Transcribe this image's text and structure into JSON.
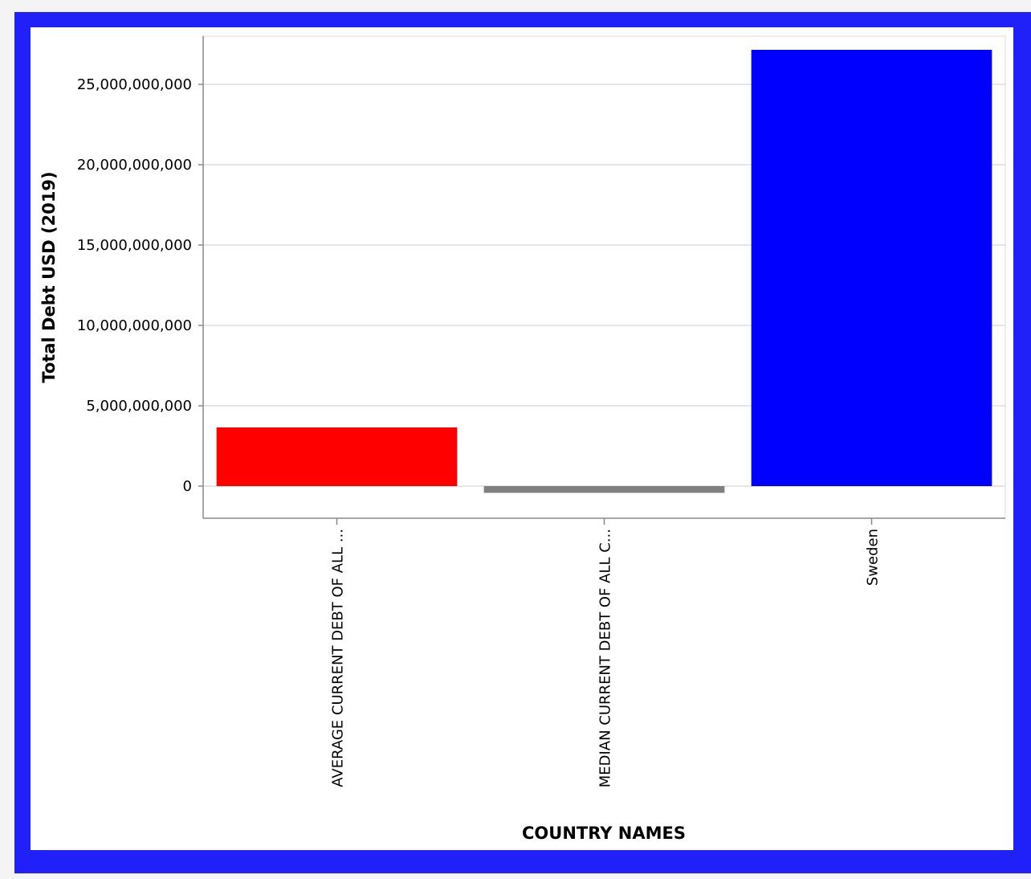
{
  "chart_data": {
    "type": "bar",
    "categories": [
      "AVERAGE CURRENT DEBT OF ALL ...",
      "MEDIAN CURRENT DEBT OF ALL C...",
      "Sweden"
    ],
    "values": [
      3650000000,
      -420000000,
      27150000000
    ],
    "colors": [
      "#ff0000",
      "#808080",
      "#0000ff"
    ],
    "xlabel": "COUNTRY NAMES",
    "ylabel": "Total Debt USD (2019)",
    "ylim": [
      -2000000000,
      28000000000
    ],
    "yticks": [
      0,
      5000000000,
      10000000000,
      15000000000,
      20000000000,
      25000000000
    ],
    "ytick_labels": [
      "0",
      "5,000,000,000",
      "10,000,000,000",
      "15,000,000,000",
      "20,000,000,000",
      "25,000,000,000"
    ],
    "grid": true,
    "frame_color": "#2020f8"
  }
}
